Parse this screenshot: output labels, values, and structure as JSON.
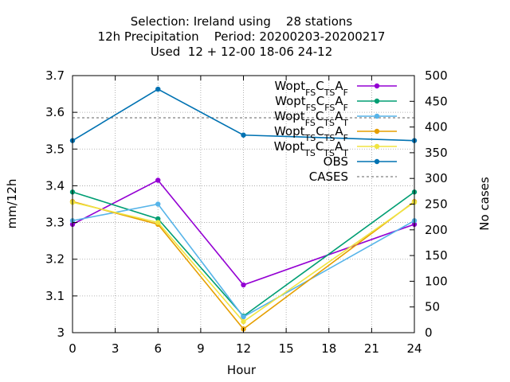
{
  "chart_data": {
    "type": "line",
    "title_lines": [
      "Selection: Ireland using    28 stations",
      "12h Precipitation    Period: 20200203-20200217",
      "Used  12 + 12-00 18-06 24-12"
    ],
    "xlabel": "Hour",
    "ylabel": "mm/12h",
    "y2label": "No cases",
    "xlim": [
      0,
      24
    ],
    "ylim": [
      3.0,
      3.7
    ],
    "y2lim": [
      0,
      500
    ],
    "x_ticks": [
      0,
      3,
      6,
      9,
      12,
      15,
      18,
      21,
      24
    ],
    "y_ticks": [
      3,
      3.1,
      3.2,
      3.3,
      3.4,
      3.5,
      3.6,
      3.7
    ],
    "y_tick_labels": [
      "3",
      "3.1",
      "3.2",
      "3.3",
      "3.4",
      "3.5",
      "3.6",
      "3.7"
    ],
    "y2_ticks": [
      0,
      50,
      100,
      150,
      200,
      250,
      300,
      350,
      400,
      450,
      500
    ],
    "grid": true,
    "legend_position": "top-right",
    "x": [
      0,
      6,
      12,
      24
    ],
    "series": [
      {
        "name": "Wopt FS C TS A F",
        "label_parts": [
          [
            "Wopt",
            ""
          ],
          [
            "FS",
            "sub"
          ],
          [
            "C",
            ""
          ],
          [
            "TS",
            "sub"
          ],
          [
            "A",
            ""
          ],
          [
            "F",
            "sub"
          ]
        ],
        "color": "#9400d3",
        "values": [
          3.295,
          3.415,
          3.13,
          3.295
        ]
      },
      {
        "name": "Wopt FS C FS A F",
        "label_parts": [
          [
            "Wopt",
            ""
          ],
          [
            "FS",
            "sub"
          ],
          [
            "C",
            ""
          ],
          [
            "FS",
            "sub"
          ],
          [
            "A",
            ""
          ],
          [
            "F",
            "sub"
          ]
        ],
        "color": "#009e73",
        "values": [
          3.383,
          3.31,
          3.045,
          3.383
        ]
      },
      {
        "name": "Wopt FS C TS A T",
        "label_parts": [
          [
            "Wopt",
            ""
          ],
          [
            "FS",
            "sub"
          ],
          [
            "C",
            ""
          ],
          [
            "TS",
            "sub"
          ],
          [
            "A",
            ""
          ],
          [
            "T",
            "sub"
          ]
        ],
        "color": "#56b4e9",
        "values": [
          3.305,
          3.35,
          3.043,
          3.305
        ]
      },
      {
        "name": "Wopt TS C TS A F",
        "label_parts": [
          [
            "Wopt",
            ""
          ],
          [
            "TS",
            "sub"
          ],
          [
            "C",
            ""
          ],
          [
            "TS",
            "sub"
          ],
          [
            "A",
            ""
          ],
          [
            "F",
            "sub"
          ]
        ],
        "color": "#e69f00",
        "values": [
          3.357,
          3.295,
          3.01,
          3.357
        ]
      },
      {
        "name": "Wopt TS C TS A T",
        "label_parts": [
          [
            "Wopt",
            ""
          ],
          [
            "TS",
            "sub"
          ],
          [
            "C",
            ""
          ],
          [
            "TS",
            "sub"
          ],
          [
            "A",
            ""
          ],
          [
            "T",
            "sub"
          ]
        ],
        "color": "#f0e442",
        "values": [
          3.355,
          3.3,
          3.03,
          3.355
        ]
      },
      {
        "name": "OBS",
        "label_parts": [
          [
            "OBS",
            ""
          ]
        ],
        "color": "#0072b2",
        "values": [
          3.523,
          3.663,
          3.538,
          3.523
        ]
      }
    ],
    "cases": {
      "name": "CASES",
      "label_parts": [
        [
          "CASES",
          ""
        ]
      ],
      "color": "#808080",
      "value": 418,
      "axis": "y2"
    }
  }
}
